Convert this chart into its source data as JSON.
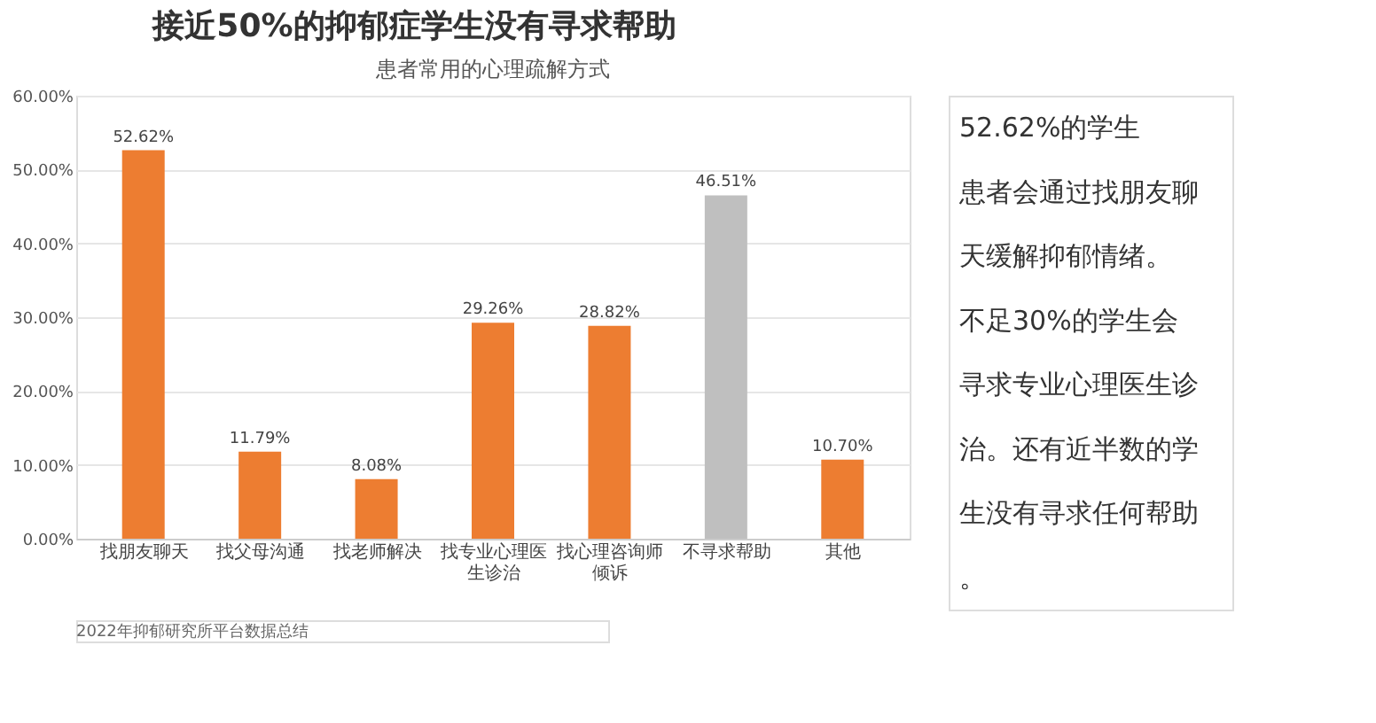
{
  "chart_data": [
    {
      "type": "bar",
      "title": "接近50%的抑郁症学生没有寻求帮助",
      "subtitle": "患者常用的心理疏解方式",
      "categories": [
        "找朋友聊天",
        "找父母沟通",
        "找老师解决",
        "找专业心理医生诊治",
        "找心理咨询师倾诉",
        "不寻求帮助",
        "其他"
      ],
      "values": [
        52.62,
        11.79,
        8.08,
        29.26,
        28.82,
        46.51,
        10.7
      ],
      "colors": [
        "#ed7d31",
        "#ed7d31",
        "#ed7d31",
        "#ed7d31",
        "#ed7d31",
        "#bfbfbf",
        "#ed7d31"
      ],
      "value_labels": [
        "52.62%",
        "11.79%",
        "8.08%",
        "29.26%",
        "28.82%",
        "46.51%",
        "10.70%"
      ],
      "ylim": [
        0,
        60
      ],
      "yticks": [
        {
          "value": 0,
          "label": "0.00%"
        },
        {
          "value": 10,
          "label": "10.00%"
        },
        {
          "value": 20,
          "label": "20.00%"
        },
        {
          "value": 30,
          "label": "30.00%"
        },
        {
          "value": 40,
          "label": "40.00%"
        },
        {
          "value": 50,
          "label": "50.00%"
        },
        {
          "value": 60,
          "label": "60.00%"
        }
      ],
      "grid": "y",
      "annotations": [
        "2022年抑郁研究所平台数据总结"
      ]
    },
    {
      "type": "other",
      "annotations": [
        "52.62%的学生患者会通过找朋友聊天缓解抑郁情绪。",
        "不足30%的学生会寻求专业心理医生诊治。还有近半数的学生没有寻求任何帮助。"
      ]
    }
  ]
}
